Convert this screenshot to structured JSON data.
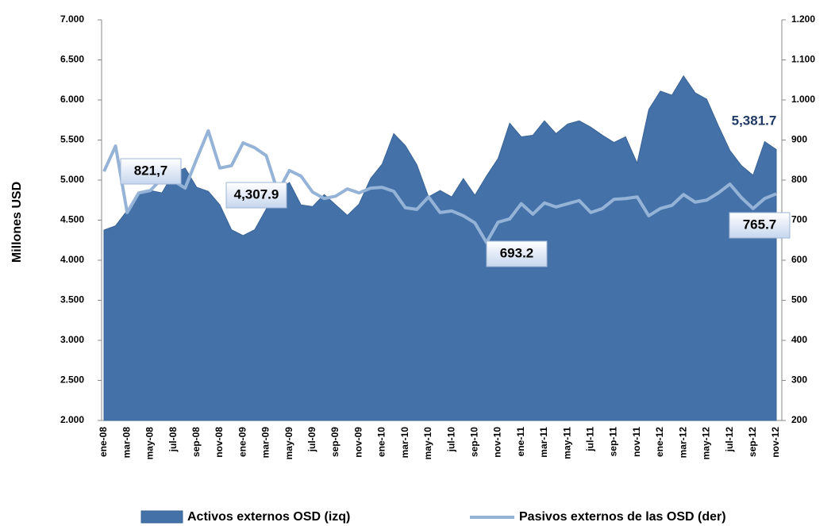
{
  "chart_data": {
    "type": "area-line",
    "y_label": "Millones USD",
    "categories": [
      "ene-08",
      null,
      "mar-08",
      null,
      "may-08",
      null,
      "jul-08",
      null,
      "sep-08",
      null,
      "nov-08",
      null,
      "ene-09",
      null,
      "mar-09",
      null,
      "may-09",
      null,
      "jul-09",
      null,
      "sep-09",
      null,
      "nov-09",
      null,
      "ene-10",
      null,
      "mar-10",
      null,
      "may-10",
      null,
      "jul-10",
      null,
      "sep-10",
      null,
      "nov-10",
      null,
      "ene-11",
      null,
      "mar-11",
      null,
      "may-11",
      null,
      "jul-11",
      null,
      "sep-11",
      null,
      "nov-11",
      null,
      "ene-12",
      null,
      "mar-12",
      null,
      "may-12",
      null,
      "jul-12",
      null,
      "sep-12",
      null,
      "nov-12"
    ],
    "series": [
      {
        "name": "Activos externos OSD (izq)",
        "type": "area",
        "color": "#4471a8",
        "values": [
          4376,
          4430,
          4620,
          4840,
          4870,
          4840,
          5090,
          5150,
          4910,
          4860,
          4690,
          4380,
          4307.9,
          4380,
          4640,
          4870,
          4970,
          4690,
          4670,
          4820,
          4690,
          4560,
          4700,
          5020,
          5200,
          5580,
          5430,
          5190,
          4790,
          4870,
          4790,
          5020,
          4810,
          5050,
          5270,
          5710,
          5540,
          5560,
          5740,
          5580,
          5700,
          5740,
          5660,
          5560,
          5470,
          5540,
          5210,
          5880,
          6110,
          6060,
          6300,
          6090,
          6010,
          5680,
          5370,
          5180,
          5060,
          5480,
          5381.7
        ],
        "value_labels": [
          null,
          null,
          null,
          null,
          null,
          null,
          null,
          null,
          null,
          null,
          null,
          null,
          "4,307.9",
          null,
          null,
          null,
          null,
          null,
          null,
          null,
          null,
          null,
          null,
          null,
          null,
          null,
          null,
          null,
          null,
          null,
          null,
          null,
          null,
          null,
          null,
          null,
          null,
          null,
          null,
          null,
          null,
          null,
          null,
          null,
          null,
          null,
          null,
          null,
          null,
          null,
          null,
          null,
          null,
          null,
          null,
          null,
          null,
          null,
          "5,381.7"
        ]
      },
      {
        "name": "Pasivos externos de las OSD (der)",
        "type": "line",
        "axis": "y2",
        "color": "#95b3d7",
        "values": [
          821.7,
          885,
          719,
          768,
          774,
          804,
          798,
          780,
          853,
          923,
          830,
          836,
          893,
          881,
          861,
          770,
          824,
          810,
          770,
          754,
          760,
          778,
          768,
          780,
          782,
          772,
          731,
          727,
          758,
          719,
          723,
          711,
          693.2,
          644,
          695,
          703,
          741,
          715,
          743,
          733,
          741,
          749,
          719,
          729,
          752,
          754,
          758,
          711,
          729,
          737,
          764,
          745,
          750,
          768,
          790,
          756,
          729,
          754,
          765.7
        ],
        "value_labels": [
          "821,7",
          null,
          null,
          null,
          null,
          null,
          null,
          null,
          null,
          null,
          null,
          null,
          null,
          null,
          null,
          null,
          null,
          null,
          null,
          null,
          null,
          null,
          null,
          null,
          null,
          null,
          null,
          null,
          null,
          null,
          null,
          null,
          "693.2",
          null,
          null,
          null,
          null,
          null,
          null,
          null,
          null,
          null,
          null,
          null,
          null,
          null,
          null,
          null,
          null,
          null,
          null,
          null,
          null,
          null,
          null,
          null,
          null,
          null,
          "765.7"
        ]
      }
    ],
    "ylim": [
      2000,
      7000
    ],
    "yticks": [
      {
        "value": 2000,
        "label": "2.000"
      },
      {
        "value": 2500,
        "label": "2.500"
      },
      {
        "value": 3000,
        "label": "3.000"
      },
      {
        "value": 3500,
        "label": "3.500"
      },
      {
        "value": 4000,
        "label": "4.000"
      },
      {
        "value": 4500,
        "label": "4.500"
      },
      {
        "value": 5000,
        "label": "5.000"
      },
      {
        "value": 5500,
        "label": "5.500"
      },
      {
        "value": 6000,
        "label": "6.000"
      },
      {
        "value": 6500,
        "label": "6.500"
      },
      {
        "value": 7000,
        "label": "7.000"
      }
    ],
    "y2lim": [
      200,
      1200
    ],
    "y2ticks": [
      200,
      300,
      400,
      500,
      600,
      700,
      800,
      900,
      {
        "value": 1000,
        "label": "1.000"
      },
      {
        "value": 1100,
        "label": "1.100"
      },
      {
        "value": 1200,
        "label": "1.200"
      }
    ],
    "legend": "bottom"
  }
}
